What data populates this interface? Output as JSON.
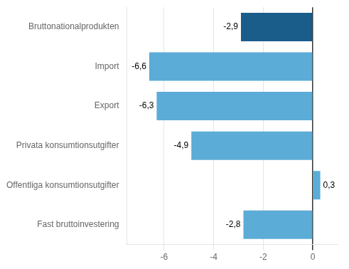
{
  "chart_data": {
    "type": "bar",
    "orientation": "horizontal",
    "categories": [
      "Fast bruttoinvestering",
      "Offentliga konsumtionsutgifter",
      "Privata konsumtionsutgifter",
      "Export",
      "Import",
      "Bruttonationalprodukten"
    ],
    "values": [
      -2.8,
      0.3,
      -4.9,
      -6.3,
      -6.6,
      -2.9
    ],
    "value_labels": [
      "-2,8",
      "0,3",
      "-4,9",
      "-6,3",
      "-6,6",
      "-2,9"
    ],
    "colors": [
      "#5bacd6",
      "#5bacd6",
      "#5bacd6",
      "#5bacd6",
      "#5bacd6",
      "#1a5c8a"
    ],
    "xlim": [
      -7.5,
      1.0
    ],
    "xticks": [
      -6,
      -4,
      -2,
      0
    ],
    "grid": true,
    "data_labels": true
  }
}
